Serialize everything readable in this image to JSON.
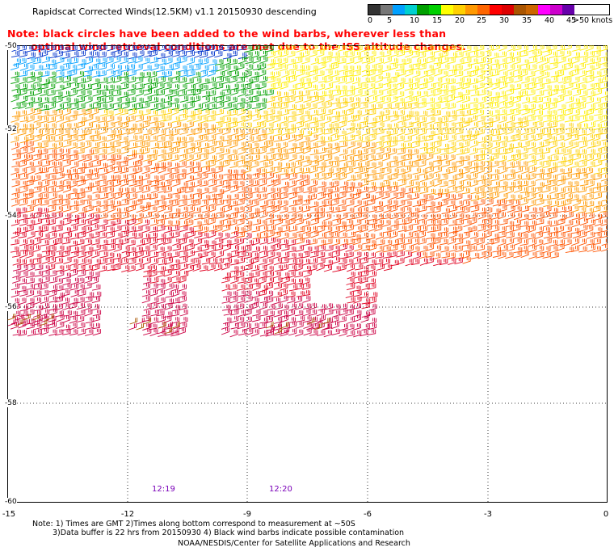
{
  "title": "Rapidscat Corrected Winds(12.5KM) v1.1 20150930 descending",
  "note": {
    "line1": "Note: black circles have been added to the wind barbs, wherever less than",
    "line2": "optimal wind retrieval conditions are met due to the ISS altitude changes."
  },
  "colorbar": {
    "colors": [
      "#333333",
      "#777777",
      "#00a0ff",
      "#00d0d0",
      "#00a000",
      "#00d000",
      "#ffff00",
      "#ffd000",
      "#ff9900",
      "#ff6600",
      "#ff0000",
      "#dd0000",
      "#aa5500",
      "#cc6600",
      "#ff00ff",
      "#cc00cc",
      "#6600aa"
    ],
    "labels": [
      "0",
      "5",
      "10",
      "15",
      "20",
      "25",
      "30",
      "35",
      "40",
      "45",
      ">50 knots"
    ]
  },
  "map": {
    "lat_labels": [
      "-50",
      "-52",
      "-54",
      "-56",
      "-58",
      "-60"
    ],
    "lon_labels": [
      "-15",
      "-12",
      "-9",
      "-6",
      "-3",
      "0"
    ],
    "time_labels": [
      "12:19",
      "12:20"
    ]
  },
  "footer": {
    "line1": "Note: 1) Times are GMT 2)Times along bottom correspond to measurement at ~50S",
    "line2": "3)Data buffer is 22 hrs from 20150930 4) Black wind barbs indicate possible contamination",
    "credit": "NOAA/NESDIS/Center for Satellite Applications and Research"
  }
}
